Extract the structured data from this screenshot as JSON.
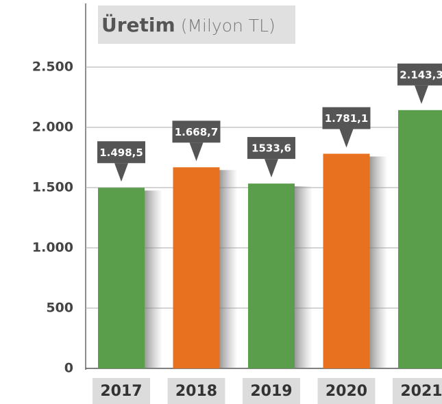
{
  "chart_data": {
    "type": "bar",
    "title": "Üretim",
    "subtitle": "(Milyon TL)",
    "categories": [
      "2017",
      "2018",
      "2019",
      "2020",
      "2021"
    ],
    "values": [
      1498.5,
      1668.7,
      1533.6,
      1781.1,
      2143.3
    ],
    "value_labels": [
      "1.498,5",
      "1.668,7",
      "1533,6",
      "1.781,1",
      "2.143,3"
    ],
    "colors": [
      "#5a9e4b",
      "#e8711f",
      "#5a9e4b",
      "#e8711f",
      "#5a9e4b"
    ],
    "ylim": [
      0,
      2500
    ],
    "yticks": [
      0,
      500,
      {
        "value": 1000,
        "label": "1.000"
      },
      {
        "value": 1500,
        "label": "1.500"
      },
      {
        "value": 2000,
        "label": "2.000"
      },
      {
        "value": 2500,
        "label": "2.500"
      }
    ],
    "grid": true
  }
}
